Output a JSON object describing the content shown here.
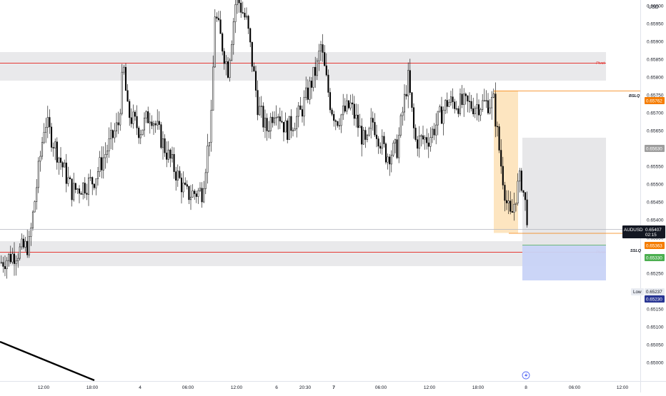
{
  "currency": "USD",
  "symbol": "AUDUSD",
  "last_price": "0.65407",
  "countdown": "02:15",
  "low_label": "Low",
  "low_price": "0.65237",
  "price_tags": {
    "bslq": {
      "label": "BSLQ",
      "price": "0.65762",
      "color": "#f57c00"
    },
    "sslq": {
      "label": "SSLQ",
      "price": "0.65363",
      "color": "#f57c00"
    },
    "target_stop": {
      "price": "0.65630",
      "color": "#9e9e9e"
    },
    "entry": {
      "price": "0.65330",
      "color": "#4caf50"
    },
    "target": {
      "price": "0.65230",
      "color": "#283593"
    }
  },
  "pivot_label": "Pivot",
  "colors": {
    "candle": "#000000",
    "pivot_line": "#e53935",
    "zone": "#e9e9eb",
    "liquidity_box": "#fde2b9",
    "stop_box": "#e6e6e8",
    "target_box": "#c8d3f7"
  },
  "chart_data": {
    "type": "candlestick",
    "x_ticks": [
      "12:00",
      "18:00",
      "4",
      "06:00",
      "12:00",
      "6",
      "20:30",
      "7",
      "06:00",
      "12:00",
      "18:00",
      "8",
      "06:00",
      "12:00"
    ],
    "y_ticks": [
      0.66,
      0.6595,
      0.659,
      0.6585,
      0.658,
      0.6575,
      0.657,
      0.6565,
      0.656,
      0.6555,
      0.655,
      0.6545,
      0.654,
      0.6535,
      0.653,
      0.6525,
      0.652,
      0.6515,
      0.651,
      0.6505,
      0.65
    ],
    "ylim": [
      0.6497,
      0.6603
    ],
    "grid": false,
    "price_path": [
      [
        "12:00",
        0.6528
      ],
      [
        "16:00",
        0.6549
      ],
      [
        "18:00",
        0.6545
      ],
      [
        "22:00",
        0.6567
      ],
      [
        "4",
        0.6569
      ],
      [
        "04:00",
        0.6563
      ],
      [
        "06:00",
        0.6546
      ],
      [
        "09:00",
        0.6598
      ],
      [
        "12:00",
        0.6603
      ],
      [
        "14:00",
        0.657
      ],
      [
        "6",
        0.6565
      ],
      [
        "20:30",
        0.6583
      ],
      [
        "7",
        0.6572
      ],
      [
        "03:00",
        0.6565
      ],
      [
        "06:00",
        0.6556
      ],
      [
        "09:00",
        0.658
      ],
      [
        "10:00",
        0.6563
      ],
      [
        "12:00",
        0.6565
      ],
      [
        "15:00",
        0.6572
      ],
      [
        "18:00",
        0.6571
      ],
      [
        "20:00",
        0.6574
      ],
      [
        "22:00",
        0.6556
      ],
      [
        "23:00",
        0.6539
      ],
      [
        "8",
        0.6545
      ],
      [
        "01:00",
        0.654
      ]
    ],
    "zones": [
      {
        "name": "Pivot",
        "price": 0.6584,
        "from": 0.6587,
        "to": 0.6579
      },
      {
        "name": "Pivot",
        "price": 0.6531,
        "from": 0.6534,
        "to": 0.6527
      }
    ],
    "liquidity": {
      "bslq": 0.65762,
      "sslq": 0.65363
    },
    "position": {
      "stop": 0.6563,
      "entry": 0.6533,
      "target": 0.6523
    }
  }
}
